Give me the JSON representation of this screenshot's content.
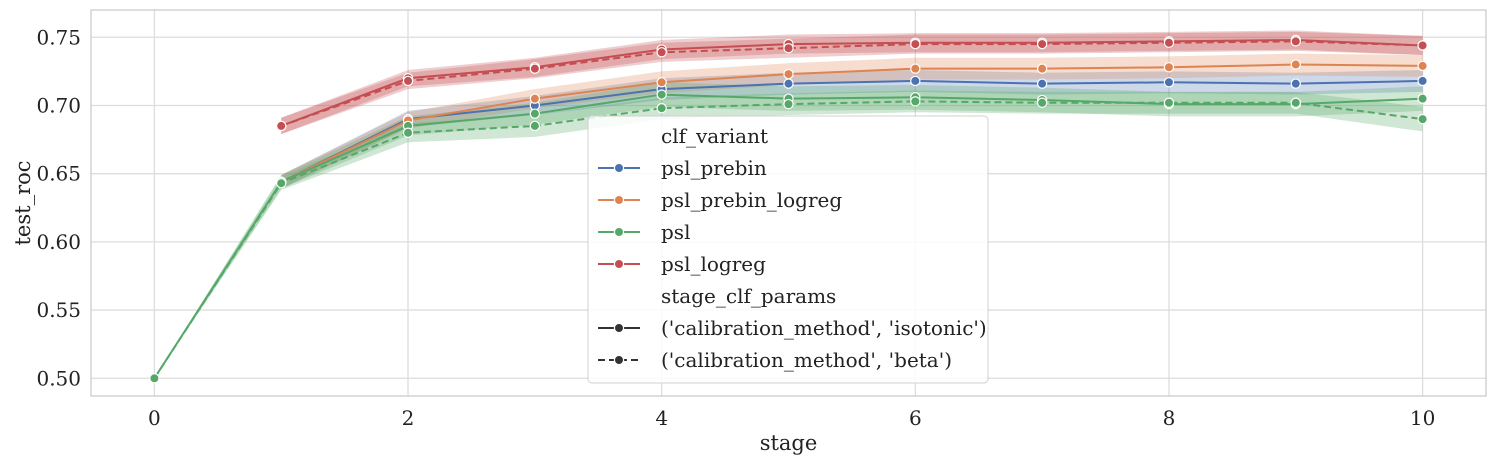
{
  "chart_data": {
    "type": "line",
    "title": "",
    "xlabel": "stage",
    "ylabel": "test_roc",
    "xlim": [
      -0.5,
      10.5
    ],
    "ylim": [
      0.487,
      0.77
    ],
    "xticks": [
      0,
      2,
      4,
      6,
      8,
      10
    ],
    "xtick_labels": [
      "0",
      "2",
      "4",
      "6",
      "8",
      "10"
    ],
    "yticks": [
      0.5,
      0.55,
      0.6,
      0.65,
      0.7,
      0.75
    ],
    "ytick_labels": [
      "0.50",
      "0.55",
      "0.60",
      "0.65",
      "0.70",
      "0.75"
    ],
    "grid": true,
    "legend_position": "center",
    "legend": {
      "hue_title": "clf_variant",
      "style_title": "stage_clf_params",
      "style_entries": [
        {
          "label": "('calibration_method', 'isotonic')",
          "dash": "solid"
        },
        {
          "label": "('calibration_method', 'beta')",
          "dash": "dashed"
        }
      ]
    },
    "series": [
      {
        "variant": "psl_prebin",
        "params": "('calibration_method', 'isotonic')",
        "color": "#4c72b0",
        "dash": "solid",
        "x": [
          1,
          2,
          3,
          4,
          5,
          6,
          7,
          8,
          9,
          10
        ],
        "y": [
          0.644,
          0.69,
          0.7,
          0.712,
          0.716,
          0.718,
          0.716,
          0.717,
          0.716,
          0.718
        ],
        "ci": [
          0.005,
          0.006,
          0.007,
          0.008,
          0.008,
          0.008,
          0.008,
          0.008,
          0.008,
          0.008
        ]
      },
      {
        "variant": "psl_prebin_logreg",
        "params": "('calibration_method', 'isotonic')",
        "color": "#dd8452",
        "dash": "solid",
        "x": [
          1,
          2,
          3,
          4,
          5,
          6,
          7,
          8,
          9,
          10
        ],
        "y": [
          0.644,
          0.689,
          0.705,
          0.717,
          0.723,
          0.727,
          0.727,
          0.728,
          0.73,
          0.729
        ],
        "ci": [
          0.005,
          0.006,
          0.007,
          0.008,
          0.008,
          0.008,
          0.008,
          0.008,
          0.008,
          0.008
        ]
      },
      {
        "variant": "psl",
        "params": "('calibration_method', 'isotonic')",
        "color": "#55a868",
        "dash": "solid",
        "x": [
          0,
          1,
          2,
          3,
          4,
          5,
          6,
          7,
          8,
          9,
          10
        ],
        "y": [
          0.5,
          0.644,
          0.685,
          0.694,
          0.708,
          0.705,
          0.706,
          0.704,
          0.701,
          0.701,
          0.705
        ],
        "ci": [
          0.0,
          0.005,
          0.007,
          0.008,
          0.009,
          0.009,
          0.009,
          0.009,
          0.009,
          0.009,
          0.009
        ]
      },
      {
        "variant": "psl",
        "params": "('calibration_method', 'beta')",
        "color": "#55a868",
        "dash": "dashed",
        "x": [
          0,
          1,
          2,
          3,
          4,
          5,
          6,
          7,
          8,
          9,
          10
        ],
        "y": [
          0.5,
          0.643,
          0.68,
          0.685,
          0.698,
          0.701,
          0.703,
          0.702,
          0.702,
          0.702,
          0.69
        ],
        "ci": [
          0.0,
          0.005,
          0.007,
          0.008,
          0.008,
          0.008,
          0.008,
          0.008,
          0.008,
          0.008,
          0.009
        ]
      },
      {
        "variant": "psl_logreg",
        "params": "('calibration_method', 'isotonic')",
        "color": "#c44e52",
        "dash": "solid",
        "x": [
          1,
          2,
          3,
          4,
          5,
          6,
          7,
          8,
          9,
          10
        ],
        "y": [
          0.685,
          0.72,
          0.728,
          0.741,
          0.745,
          0.746,
          0.746,
          0.747,
          0.748,
          0.744
        ],
        "ci": [
          0.006,
          0.006,
          0.007,
          0.007,
          0.007,
          0.007,
          0.007,
          0.007,
          0.007,
          0.007
        ]
      },
      {
        "variant": "psl_logreg",
        "params": "('calibration_method', 'beta')",
        "color": "#c44e52",
        "dash": "dashed",
        "x": [
          1,
          2,
          3,
          4,
          5,
          6,
          7,
          8,
          9,
          10
        ],
        "y": [
          0.685,
          0.718,
          0.727,
          0.739,
          0.742,
          0.745,
          0.745,
          0.746,
          0.747,
          0.744
        ],
        "ci": [
          0.006,
          0.006,
          0.007,
          0.007,
          0.007,
          0.007,
          0.007,
          0.007,
          0.007,
          0.007
        ]
      }
    ],
    "variants": [
      {
        "name": "psl_prebin",
        "color": "#4c72b0"
      },
      {
        "name": "psl_prebin_logreg",
        "color": "#dd8452"
      },
      {
        "name": "psl",
        "color": "#55a868"
      },
      {
        "name": "psl_logreg",
        "color": "#c44e52"
      }
    ]
  }
}
